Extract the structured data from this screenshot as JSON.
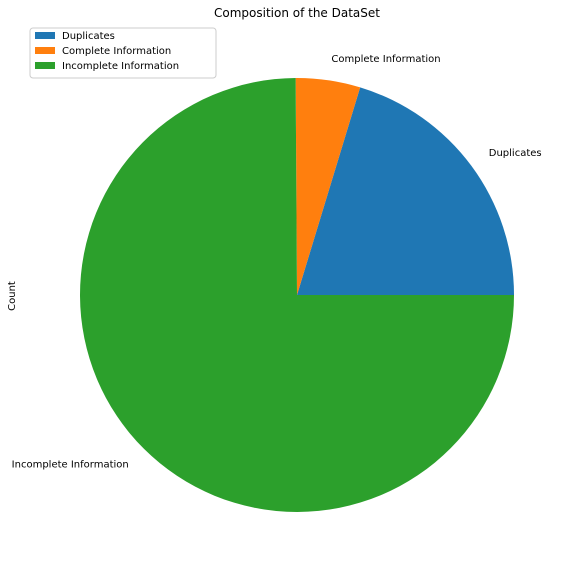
{
  "chart_data": {
    "type": "pie",
    "title": "Composition of the DataSet",
    "ylabel": "Count",
    "categories": [
      "Duplicates",
      "Complete Information",
      "Incomplete Information"
    ],
    "values": [
      20.3,
      4.8,
      74.9
    ],
    "colors": [
      "#1f77b4",
      "#ff7f0e",
      "#2ca02c"
    ],
    "legend": {
      "placement": "top-left",
      "entries": [
        "Duplicates",
        "Complete Information",
        "Incomplete Information"
      ]
    },
    "start_angle_deg": 0,
    "direction": "counterclockwise"
  }
}
